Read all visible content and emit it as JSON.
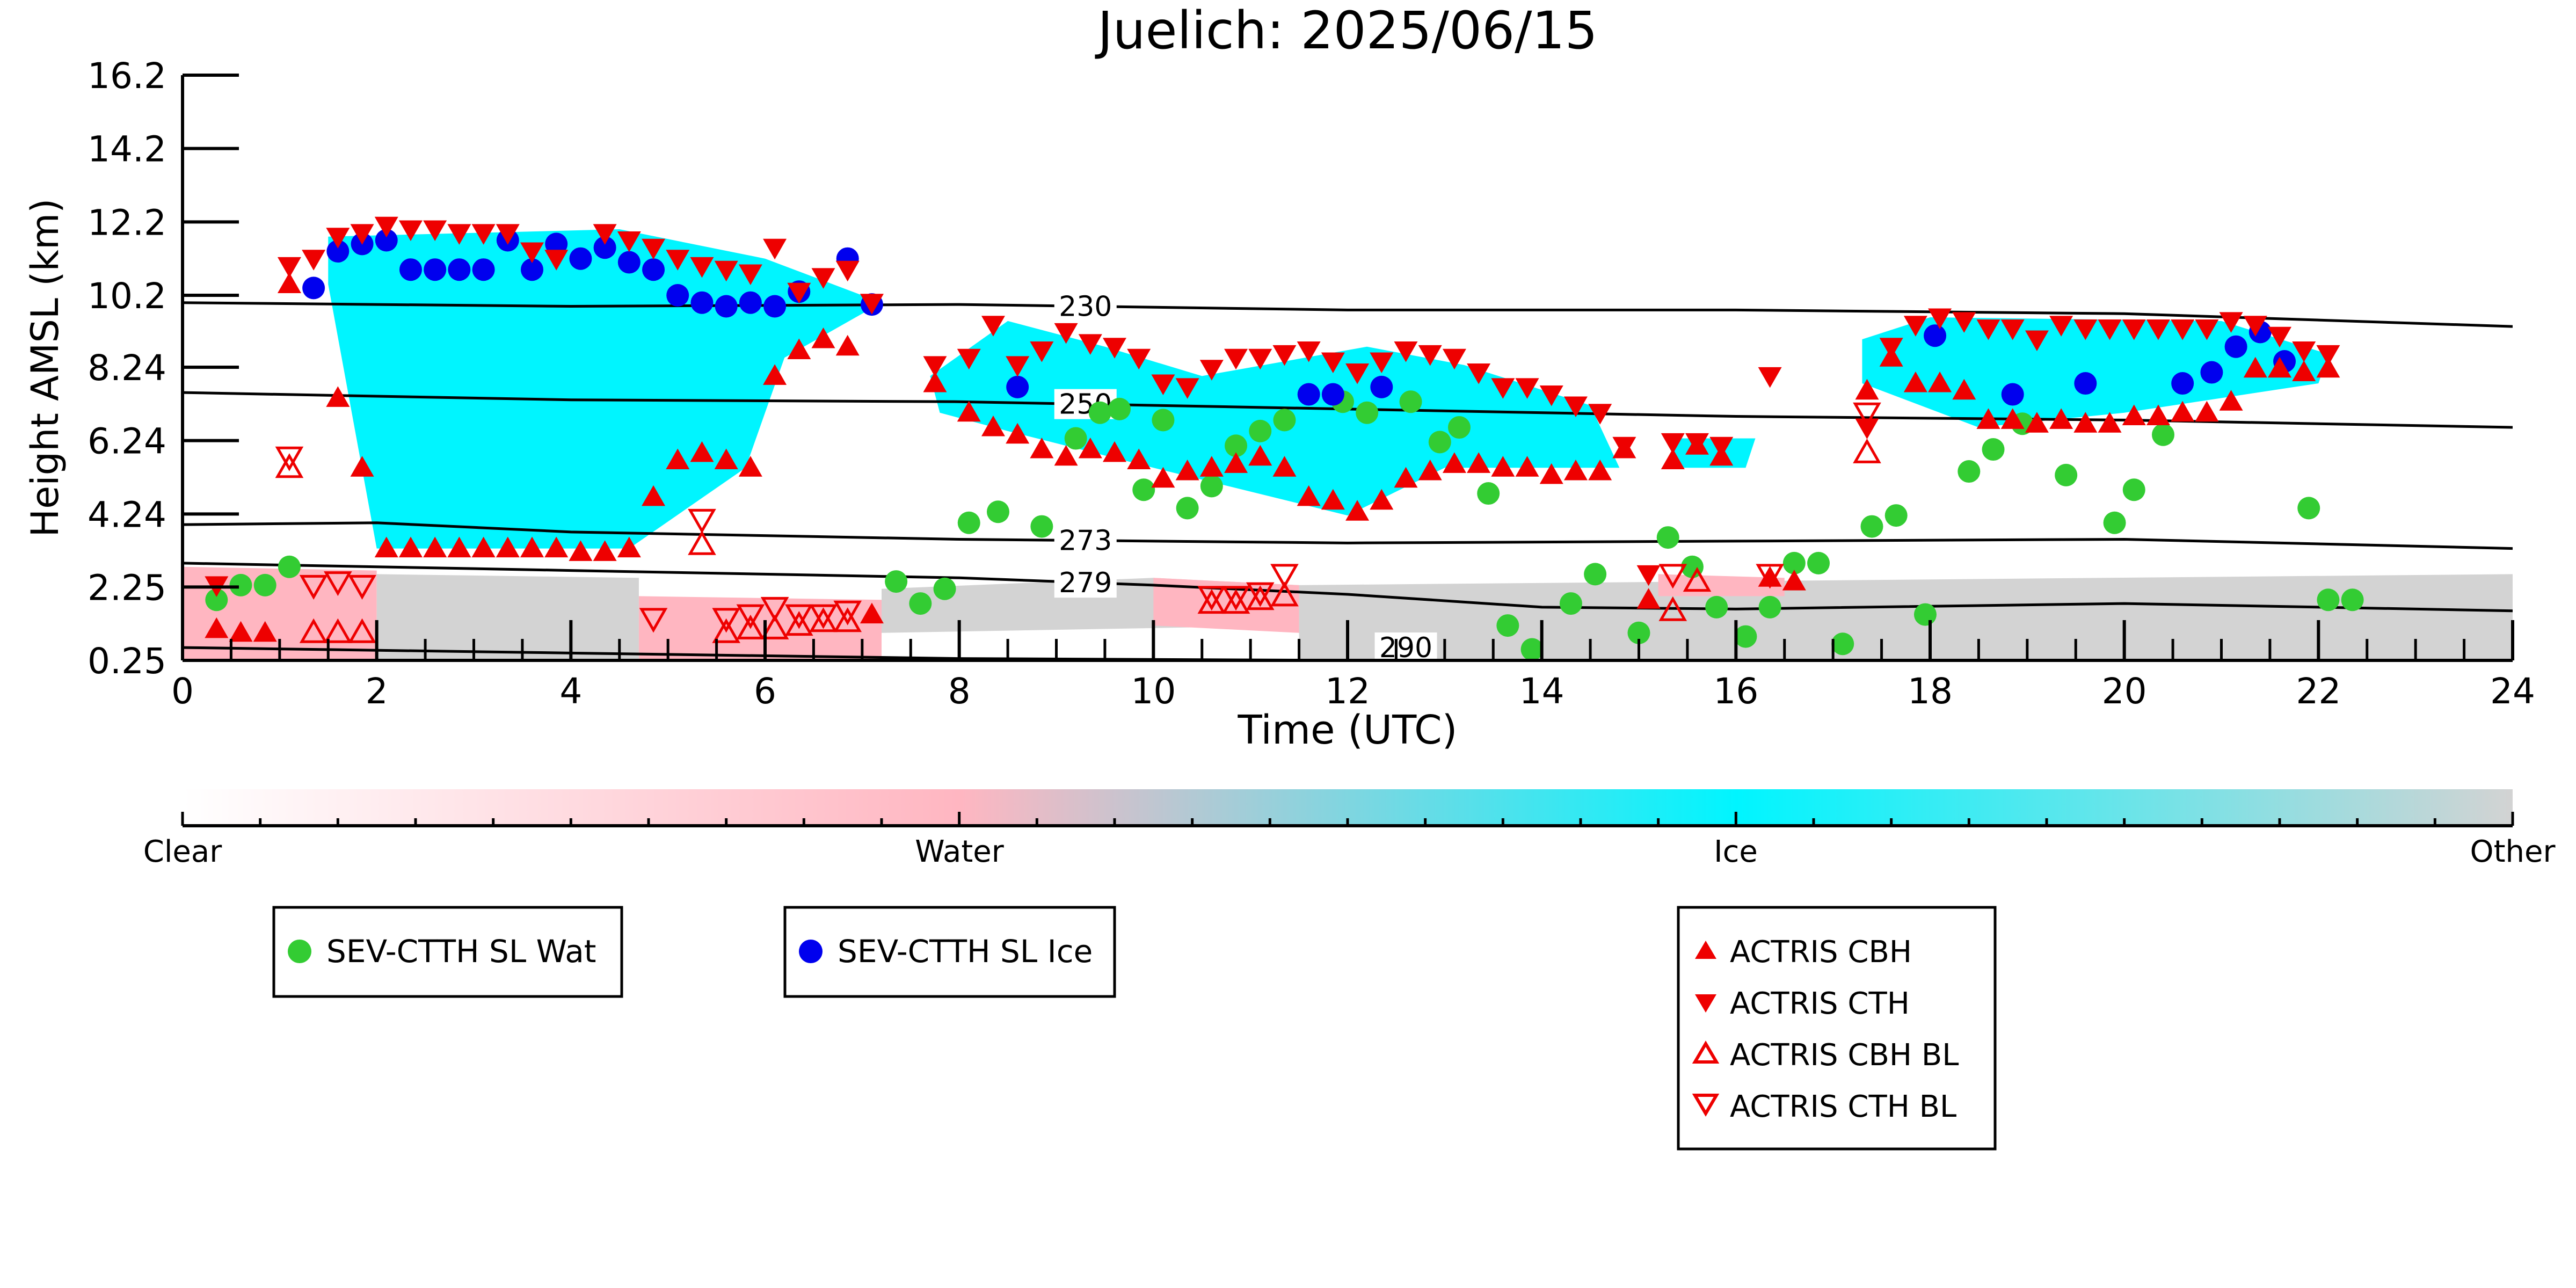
{
  "chart_data": {
    "type": "scatter",
    "title": "Juelich: 2025/06/15",
    "xlabel": "Time (UTC)",
    "ylabel": "Height AMSL (km)",
    "xlim": [
      0,
      24
    ],
    "ylim": [
      0.25,
      16.2
    ],
    "x_ticks": [
      "0",
      "2",
      "4",
      "6",
      "8",
      "10",
      "12",
      "14",
      "16",
      "18",
      "20",
      "22",
      "24"
    ],
    "y_ticks": [
      "0.25",
      "2.25",
      "4.24",
      "6.24",
      "8.24",
      "10.2",
      "12.2",
      "14.2",
      "16.2"
    ],
    "y_tick_values": [
      0.25,
      2.25,
      4.24,
      6.24,
      8.24,
      10.2,
      12.2,
      14.2,
      16.2
    ],
    "grid": false,
    "colorbar": {
      "labels": [
        "Clear",
        "Water",
        "Ice",
        "Other"
      ],
      "colors": {
        "clear": "#ffffff",
        "water": "#ffb6c1",
        "ice": "#00f5ff",
        "other": "#d3d3d3"
      }
    },
    "contours": [
      {
        "label": "230",
        "points": [
          [
            0,
            10.0
          ],
          [
            4,
            9.9
          ],
          [
            8,
            9.95
          ],
          [
            12,
            9.8
          ],
          [
            16,
            9.8
          ],
          [
            20,
            9.7
          ],
          [
            24,
            9.35
          ]
        ]
      },
      {
        "label": "250",
        "points": [
          [
            0,
            7.55
          ],
          [
            4,
            7.35
          ],
          [
            8,
            7.3
          ],
          [
            12,
            7.1
          ],
          [
            16,
            6.9
          ],
          [
            20,
            6.8
          ],
          [
            24,
            6.6
          ]
        ]
      },
      {
        "label": "273",
        "points": [
          [
            0,
            3.95
          ],
          [
            2,
            4.0
          ],
          [
            4,
            3.75
          ],
          [
            8,
            3.55
          ],
          [
            12,
            3.45
          ],
          [
            16,
            3.5
          ],
          [
            20,
            3.55
          ],
          [
            24,
            3.3
          ]
        ]
      },
      {
        "label": "279",
        "points": [
          [
            0,
            2.9
          ],
          [
            4,
            2.7
          ],
          [
            8,
            2.5
          ],
          [
            10,
            2.3
          ],
          [
            12,
            2.05
          ],
          [
            14,
            1.7
          ],
          [
            16,
            1.65
          ],
          [
            20,
            1.8
          ],
          [
            24,
            1.6
          ]
        ]
      },
      {
        "label": "290",
        "points": [
          [
            0,
            0.6
          ],
          [
            4,
            0.45
          ],
          [
            8,
            0.3
          ],
          [
            12,
            0.25
          ]
        ]
      }
    ],
    "cloud_regions": [
      {
        "type": "ice",
        "polygon": [
          [
            1.5,
            11.8
          ],
          [
            4.5,
            12.0
          ],
          [
            6.0,
            11.2
          ],
          [
            7.2,
            10.0
          ],
          [
            6.2,
            8.5
          ],
          [
            5.8,
            5.5
          ],
          [
            4.6,
            3.3
          ],
          [
            2.0,
            3.3
          ],
          [
            1.5,
            10.5
          ]
        ]
      },
      {
        "type": "ice",
        "polygon": [
          [
            7.7,
            8.0
          ],
          [
            8.5,
            9.5
          ],
          [
            9.5,
            8.8
          ],
          [
            10.5,
            8.0
          ],
          [
            12.2,
            8.8
          ],
          [
            13.2,
            8.3
          ],
          [
            14.5,
            7.2
          ],
          [
            14.8,
            5.5
          ],
          [
            13.0,
            5.5
          ],
          [
            12.0,
            4.2
          ],
          [
            10.0,
            5.5
          ],
          [
            8.5,
            6.5
          ],
          [
            7.8,
            7.0
          ]
        ]
      },
      {
        "type": "ice",
        "polygon": [
          [
            15.3,
            6.3
          ],
          [
            16.2,
            6.3
          ],
          [
            16.1,
            5.5
          ],
          [
            15.4,
            5.5
          ]
        ]
      },
      {
        "type": "ice",
        "polygon": [
          [
            17.3,
            9.0
          ],
          [
            18.0,
            9.6
          ],
          [
            21.0,
            9.5
          ],
          [
            22.1,
            8.6
          ],
          [
            22.0,
            7.8
          ],
          [
            20.0,
            7.0
          ],
          [
            18.5,
            6.6
          ],
          [
            17.3,
            7.8
          ]
        ]
      },
      {
        "type": "water",
        "polygon": [
          [
            0,
            2.8
          ],
          [
            2.0,
            2.7
          ],
          [
            2.0,
            0.25
          ],
          [
            0,
            0.25
          ]
        ]
      },
      {
        "type": "other",
        "polygon": [
          [
            2.0,
            2.6
          ],
          [
            4.7,
            2.5
          ],
          [
            4.7,
            0.25
          ],
          [
            2.0,
            0.25
          ]
        ]
      },
      {
        "type": "water",
        "polygon": [
          [
            4.7,
            2.0
          ],
          [
            7.2,
            1.9
          ],
          [
            7.2,
            0.25
          ],
          [
            4.7,
            0.25
          ]
        ]
      },
      {
        "type": "other",
        "polygon": [
          [
            7.2,
            2.2
          ],
          [
            10.0,
            2.5
          ],
          [
            11.5,
            2.3
          ],
          [
            11.5,
            1.2
          ],
          [
            7.2,
            1.0
          ]
        ]
      },
      {
        "type": "water",
        "polygon": [
          [
            10.0,
            2.5
          ],
          [
            11.5,
            2.3
          ],
          [
            11.5,
            1.0
          ],
          [
            10.0,
            1.2
          ]
        ]
      },
      {
        "type": "other",
        "polygon": [
          [
            11.5,
            2.3
          ],
          [
            24,
            2.6
          ],
          [
            24,
            0.25
          ],
          [
            11.5,
            0.25
          ]
        ]
      },
      {
        "type": "water",
        "polygon": [
          [
            15.2,
            2.6
          ],
          [
            16.5,
            2.5
          ],
          [
            16.5,
            2.0
          ],
          [
            15.2,
            2.0
          ]
        ]
      }
    ],
    "series": [
      {
        "name": "SEV-CTTH SL Wat",
        "marker": "circle",
        "color": "#33cc33",
        "x": [
          0.35,
          0.6,
          0.85,
          1.1,
          7.35,
          7.6,
          7.85,
          8.1,
          8.4,
          8.85,
          9.2,
          9.45,
          9.65,
          9.9,
          10.1,
          10.35,
          10.6,
          10.85,
          11.1,
          11.35,
          11.95,
          12.2,
          12.65,
          12.95,
          13.15,
          13.45,
          13.65,
          13.9,
          14.3,
          14.55,
          15.0,
          15.3,
          15.55,
          15.8,
          16.1,
          16.35,
          16.6,
          16.85,
          17.1,
          17.4,
          17.65,
          17.95,
          18.4,
          18.65,
          18.95,
          19.4,
          19.9,
          20.1,
          20.4,
          21.9,
          22.1,
          22.35
        ],
        "y": [
          1.9,
          2.3,
          2.3,
          2.8,
          2.4,
          1.8,
          2.2,
          4.0,
          4.3,
          3.9,
          6.3,
          7.0,
          7.1,
          4.9,
          6.8,
          4.4,
          5.0,
          6.1,
          6.5,
          6.8,
          7.3,
          7.0,
          7.3,
          6.2,
          6.6,
          4.8,
          1.2,
          0.55,
          1.8,
          2.6,
          1.0,
          3.6,
          2.8,
          1.7,
          0.9,
          1.7,
          2.9,
          2.9,
          0.7,
          3.9,
          4.2,
          1.5,
          5.4,
          6.0,
          6.7,
          5.3,
          4.0,
          4.9,
          6.4,
          4.4,
          1.9,
          1.9
        ]
      },
      {
        "name": "SEV-CTTH SL Ice",
        "marker": "circle",
        "color": "#0000ee",
        "x": [
          1.35,
          1.6,
          1.85,
          2.1,
          2.35,
          2.6,
          2.85,
          3.1,
          3.35,
          3.6,
          3.85,
          4.1,
          4.35,
          4.6,
          4.85,
          5.1,
          5.35,
          5.6,
          5.85,
          6.1,
          6.35,
          6.85,
          7.1,
          8.6,
          11.6,
          11.85,
          12.35,
          18.05,
          18.85,
          19.6,
          20.6,
          20.9,
          21.15,
          21.4,
          21.65
        ],
        "y": [
          10.4,
          11.4,
          11.6,
          11.7,
          10.9,
          10.9,
          10.9,
          10.9,
          11.7,
          10.9,
          11.6,
          11.2,
          11.5,
          11.1,
          10.9,
          10.2,
          10.0,
          9.9,
          10.0,
          9.9,
          10.3,
          11.2,
          9.95,
          7.7,
          7.5,
          7.5,
          7.7,
          9.1,
          7.5,
          7.8,
          7.8,
          8.1,
          8.8,
          9.2,
          8.4
        ]
      },
      {
        "name": "ACTRIS CBH",
        "marker": "triangle-up",
        "color": "#ee0000",
        "filled": true,
        "x": [
          0.35,
          0.6,
          0.85,
          1.1,
          1.6,
          1.85,
          2.1,
          2.35,
          2.6,
          2.85,
          3.1,
          3.35,
          3.6,
          3.85,
          4.1,
          4.35,
          4.6,
          4.85,
          5.1,
          5.35,
          5.6,
          5.85,
          6.1,
          6.35,
          6.6,
          6.85,
          7.1,
          7.75,
          8.1,
          8.35,
          8.6,
          8.85,
          9.1,
          9.35,
          9.6,
          9.85,
          10.1,
          10.35,
          10.6,
          10.85,
          11.1,
          11.35,
          11.6,
          11.85,
          12.1,
          12.35,
          12.6,
          12.85,
          13.1,
          13.35,
          13.6,
          13.85,
          14.1,
          14.35,
          14.6,
          14.85,
          15.1,
          15.35,
          15.6,
          15.85,
          16.35,
          16.6,
          17.35,
          17.6,
          17.85,
          18.1,
          18.35,
          18.6,
          18.85,
          19.1,
          19.35,
          19.6,
          19.85,
          20.1,
          20.35,
          20.6,
          20.85,
          21.1,
          21.35,
          21.6,
          21.85,
          22.1
        ],
        "y": [
          1.1,
          1.0,
          1.0,
          10.5,
          7.4,
          5.5,
          3.3,
          3.3,
          3.3,
          3.3,
          3.3,
          3.3,
          3.3,
          3.3,
          3.2,
          3.2,
          3.3,
          4.7,
          5.7,
          5.9,
          5.7,
          5.5,
          8.0,
          8.7,
          9.0,
          8.8,
          1.5,
          7.8,
          7.0,
          6.6,
          6.4,
          6.0,
          5.8,
          6.0,
          5.9,
          5.7,
          5.2,
          5.4,
          5.5,
          5.6,
          5.8,
          5.5,
          4.7,
          4.6,
          4.3,
          4.6,
          5.2,
          5.4,
          5.6,
          5.6,
          5.5,
          5.5,
          5.3,
          5.4,
          5.4,
          6.0,
          1.9,
          5.7,
          6.1,
          5.8,
          2.5,
          2.4,
          7.6,
          8.5,
          7.8,
          7.8,
          7.6,
          6.8,
          6.8,
          6.7,
          6.8,
          6.7,
          6.7,
          6.9,
          6.9,
          7.0,
          7.0,
          7.3,
          8.2,
          8.2,
          8.1,
          8.2
        ]
      },
      {
        "name": "ACTRIS CTH",
        "marker": "triangle-down",
        "color": "#ee0000",
        "filled": true,
        "x": [
          0.35,
          1.1,
          1.35,
          1.6,
          1.85,
          2.1,
          2.35,
          2.6,
          2.85,
          3.1,
          3.35,
          3.6,
          3.85,
          4.35,
          4.6,
          4.85,
          5.1,
          5.35,
          5.6,
          5.85,
          6.1,
          6.35,
          6.6,
          6.85,
          7.1,
          7.75,
          8.1,
          8.35,
          8.6,
          8.85,
          9.1,
          9.35,
          9.6,
          9.85,
          10.1,
          10.35,
          10.6,
          10.85,
          11.1,
          11.35,
          11.6,
          11.85,
          12.1,
          12.35,
          12.6,
          12.85,
          13.1,
          13.35,
          13.6,
          13.85,
          14.1,
          14.35,
          14.6,
          14.85,
          15.1,
          15.35,
          15.6,
          15.85,
          16.35,
          17.35,
          17.6,
          17.85,
          18.1,
          18.35,
          18.6,
          18.85,
          19.1,
          19.35,
          19.6,
          19.85,
          20.1,
          20.35,
          20.6,
          20.85,
          21.1,
          21.35,
          21.6,
          21.85,
          22.1
        ],
        "y": [
          2.3,
          11.0,
          11.2,
          11.8,
          11.9,
          12.1,
          12.0,
          12.0,
          11.9,
          11.9,
          11.9,
          11.4,
          11.2,
          11.9,
          11.7,
          11.5,
          11.2,
          11.0,
          10.9,
          10.8,
          11.5,
          10.3,
          10.7,
          10.9,
          10.0,
          8.3,
          8.5,
          9.4,
          8.3,
          8.7,
          9.2,
          8.9,
          8.8,
          8.5,
          7.8,
          7.7,
          8.2,
          8.5,
          8.5,
          8.6,
          8.7,
          8.4,
          8.1,
          8.4,
          8.7,
          8.6,
          8.5,
          8.1,
          7.7,
          7.7,
          7.5,
          7.2,
          7.0,
          6.1,
          2.6,
          6.2,
          6.2,
          6.1,
          8.0,
          6.6,
          8.8,
          9.4,
          9.6,
          9.5,
          9.3,
          9.3,
          9.0,
          9.4,
          9.3,
          9.3,
          9.3,
          9.3,
          9.3,
          9.3,
          9.5,
          9.4,
          9.1,
          8.7,
          8.6
        ]
      },
      {
        "name": "ACTRIS CBH BL",
        "marker": "triangle-up",
        "color": "#ee0000",
        "filled": false,
        "x": [
          1.1,
          1.35,
          1.6,
          1.85,
          5.35,
          5.6,
          5.85,
          6.1,
          6.35,
          6.6,
          6.85,
          10.6,
          10.85,
          11.1,
          11.35,
          15.35,
          15.6,
          17.35
        ],
        "y": [
          5.5,
          1.0,
          1.0,
          1.0,
          3.4,
          1.0,
          1.1,
          1.1,
          1.2,
          1.3,
          1.3,
          1.8,
          1.8,
          1.9,
          2.0,
          1.6,
          2.4,
          5.9
        ]
      },
      {
        "name": "ACTRIS CTH BL",
        "marker": "triangle-down",
        "color": "#ee0000",
        "filled": false,
        "x": [
          1.1,
          1.35,
          1.6,
          1.85,
          4.85,
          5.35,
          5.6,
          5.85,
          6.1,
          6.35,
          6.6,
          6.85,
          10.6,
          10.85,
          11.1,
          11.35,
          15.35,
          16.35,
          17.35
        ],
        "y": [
          5.8,
          2.3,
          2.4,
          2.3,
          1.4,
          4.1,
          1.4,
          1.5,
          1.7,
          1.5,
          1.5,
          1.6,
          2.0,
          2.0,
          2.1,
          2.6,
          2.6,
          2.6,
          7.0
        ]
      }
    ]
  },
  "legends": [
    {
      "entries": [
        "SEV-CTTH SL Wat"
      ]
    },
    {
      "entries": [
        "SEV-CTTH SL Ice"
      ]
    },
    {
      "entries": [
        "ACTRIS CBH",
        "ACTRIS CTH",
        "ACTRIS CBH BL",
        "ACTRIS CTH BL"
      ]
    }
  ]
}
